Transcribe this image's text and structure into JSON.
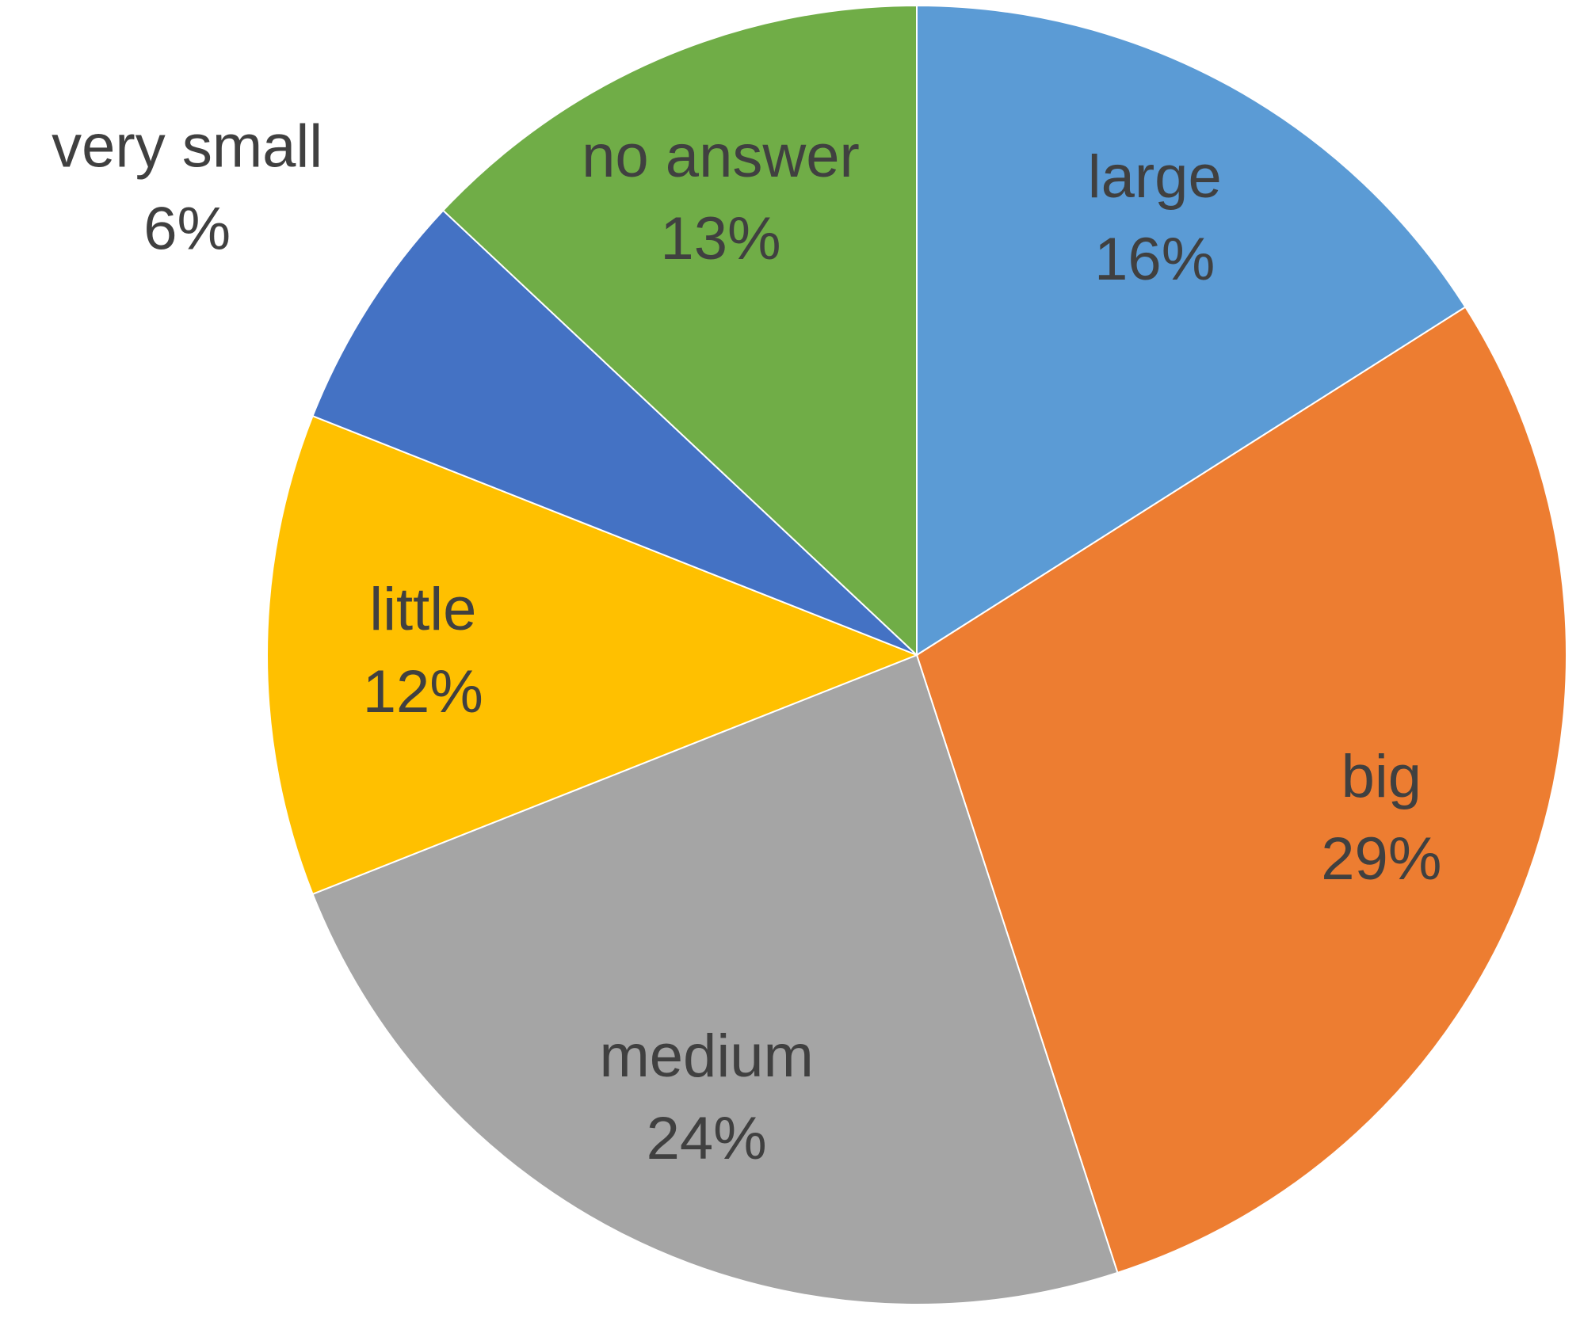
{
  "chart_data": {
    "type": "pie",
    "categories": [
      "large",
      "big",
      "medium",
      "little",
      "very small",
      "no answer"
    ],
    "values": [
      16,
      29,
      24,
      12,
      6,
      13
    ],
    "value_labels": [
      "16%",
      "29%",
      "24%",
      "12%",
      "6%",
      "13%"
    ],
    "colors": [
      "#5b9bd5",
      "#ed7d31",
      "#a5a5a5",
      "#ffc000",
      "#4472c4",
      "#70ad47"
    ]
  }
}
